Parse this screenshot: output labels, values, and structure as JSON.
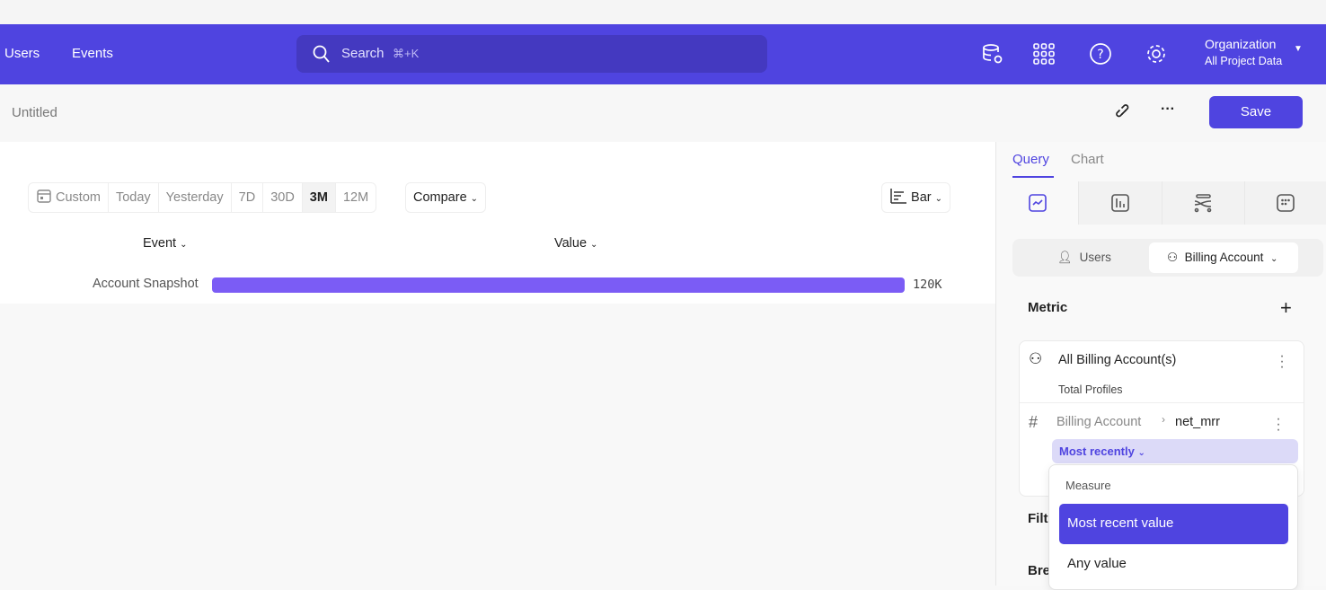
{
  "nav": {
    "links": [
      "Users",
      "Events"
    ],
    "search_placeholder": "Search",
    "search_shortcut": "⌘+K",
    "org_title": "Organization",
    "org_sub": "All Project Data",
    "brand_color": "#4f44e0"
  },
  "header": {
    "title": "Untitled",
    "save_label": "Save"
  },
  "toolbar": {
    "ranges": [
      "Custom",
      "Today",
      "Yesterday",
      "7D",
      "30D",
      "3M",
      "12M"
    ],
    "active_range": "3M",
    "compare_label": "Compare",
    "chart_type_label": "Bar"
  },
  "table": {
    "col_event": "Event",
    "col_value": "Value"
  },
  "chart_data": {
    "type": "bar",
    "categories": [
      "Account Snapshot"
    ],
    "values": [
      120000
    ],
    "value_labels": [
      "120K"
    ],
    "bar_color": "#7b5cf5"
  },
  "panel": {
    "tabs": [
      "Query",
      "Chart"
    ],
    "active_tab": "Query",
    "entity_users": "Users",
    "entity_billing": "Billing Account",
    "metric_label": "Metric",
    "card_title": "All Billing Account(s)",
    "card_sub": "Total Profiles",
    "prop_parent": "Billing Account",
    "prop_name": "net_mrr",
    "agg_label": "Most recently",
    "filters_label": "Filters",
    "breakdown_label": "Breakdown"
  },
  "dropdown": {
    "header": "Measure",
    "options": [
      "Most recent value",
      "Any value"
    ],
    "selected": "Most recent value"
  }
}
